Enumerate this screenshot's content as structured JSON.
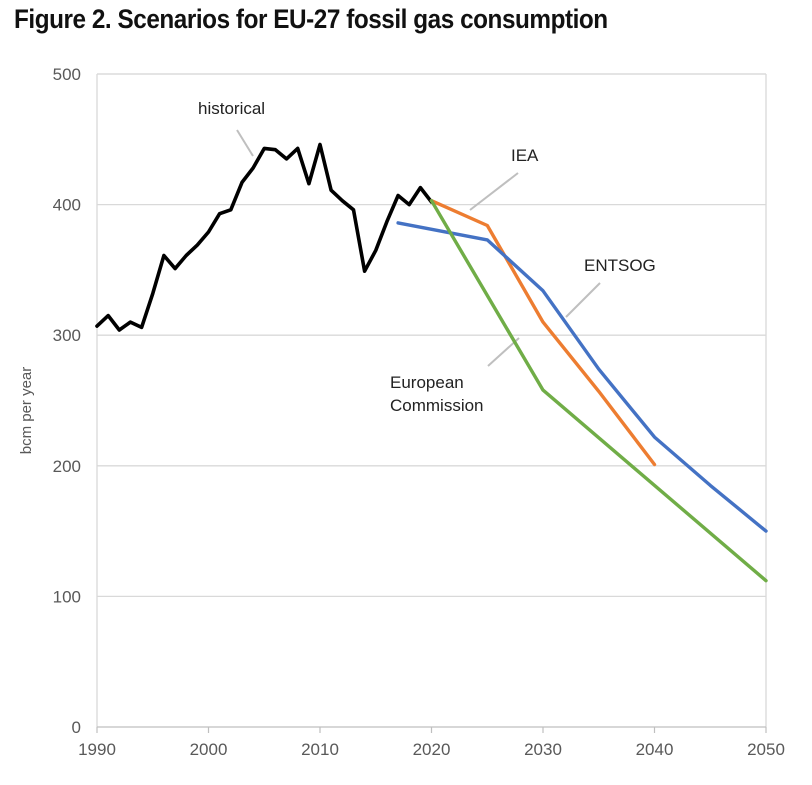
{
  "title": "Figure 2. Scenarios for EU-27 fossil gas consumption",
  "chart_data": {
    "type": "line",
    "title": "Figure 2. Scenarios for EU-27 fossil gas consumption",
    "xlabel": "",
    "ylabel": "bcm per year",
    "xlim": [
      1990,
      2050
    ],
    "ylim": [
      0,
      500
    ],
    "xticks": [
      1990,
      2000,
      2010,
      2020,
      2030,
      2040,
      2050
    ],
    "yticks": [
      0,
      100,
      200,
      300,
      400,
      500
    ],
    "grid": "horizontal",
    "legend": "none (direct labels)",
    "series": [
      {
        "name": "historical",
        "color": "#000000",
        "points": [
          [
            1990,
            307
          ],
          [
            1991,
            315
          ],
          [
            1992,
            304
          ],
          [
            1993,
            310
          ],
          [
            1994,
            306
          ],
          [
            1995,
            332
          ],
          [
            1996,
            361
          ],
          [
            1997,
            351
          ],
          [
            1998,
            361
          ],
          [
            1999,
            369
          ],
          [
            2000,
            379
          ],
          [
            2001,
            393
          ],
          [
            2002,
            396
          ],
          [
            2003,
            417
          ],
          [
            2004,
            428
          ],
          [
            2005,
            443
          ],
          [
            2006,
            442
          ],
          [
            2007,
            435
          ],
          [
            2008,
            443
          ],
          [
            2009,
            416
          ],
          [
            2010,
            446
          ],
          [
            2011,
            411
          ],
          [
            2012,
            403
          ],
          [
            2013,
            396
          ],
          [
            2014,
            349
          ],
          [
            2015,
            365
          ],
          [
            2016,
            387
          ],
          [
            2017,
            407
          ],
          [
            2018,
            400
          ],
          [
            2019,
            413
          ],
          [
            2020,
            402
          ]
        ]
      },
      {
        "name": "IEA",
        "color": "#ED7D31",
        "points": [
          [
            2020,
            403
          ],
          [
            2025,
            384
          ],
          [
            2030,
            310
          ],
          [
            2035,
            257
          ],
          [
            2040,
            201
          ]
        ]
      },
      {
        "name": "ENTSOG",
        "color": "#4472C4",
        "points": [
          [
            2017,
            386
          ],
          [
            2025,
            373
          ],
          [
            2030,
            334
          ],
          [
            2035,
            274
          ],
          [
            2040,
            222
          ],
          [
            2045,
            185
          ],
          [
            2050,
            150
          ]
        ]
      },
      {
        "name": "European Commission",
        "color": "#70AD47",
        "points": [
          [
            2020,
            403
          ],
          [
            2030,
            258
          ],
          [
            2050,
            112
          ]
        ]
      }
    ],
    "annotations": [
      {
        "lines": [
          "historical"
        ],
        "series": "historical"
      },
      {
        "lines": [
          "IEA"
        ],
        "series": "IEA"
      },
      {
        "lines": [
          "ENTSOG"
        ],
        "series": "ENTSOG"
      },
      {
        "lines": [
          "European",
          "Commission"
        ],
        "series": "European Commission"
      }
    ]
  }
}
